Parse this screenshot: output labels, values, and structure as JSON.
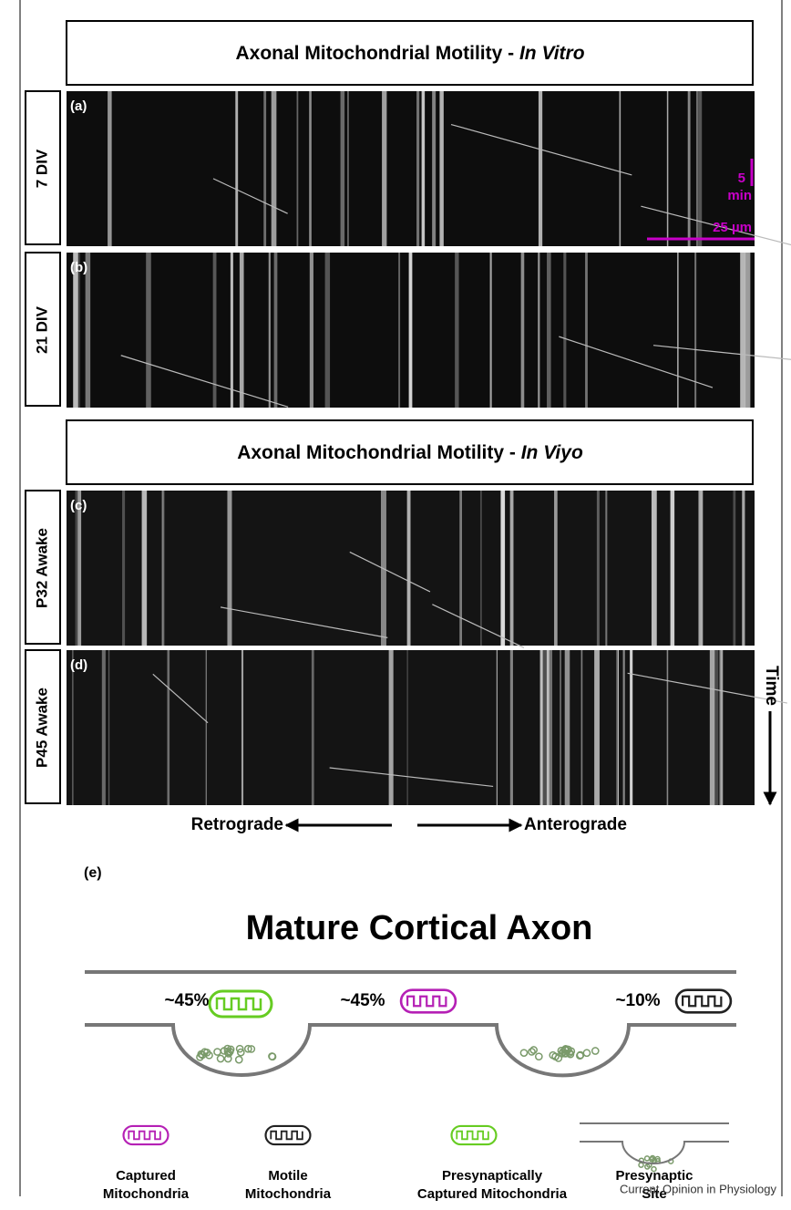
{
  "figure": {
    "in_vitro_title": {
      "text": "Axonal Mitochondrial Motility - ",
      "italic": "In Vitro"
    },
    "in_vivo_title": {
      "text": "Axonal Mitochondrial Motility - ",
      "italic": "In Viyo"
    },
    "panels": [
      {
        "label": "(a)",
        "side_label": "7 DIV"
      },
      {
        "label": "(b)",
        "side_label": "21 DIV"
      },
      {
        "label": "(c)",
        "side_label": "P32 Awake"
      },
      {
        "label": "(d)",
        "side_label": "P45 Awake"
      }
    ],
    "scale_bar": {
      "time": "5",
      "time_unit": "min",
      "length": "25 µm"
    },
    "time_axis": "Time",
    "retrograde": "Retrograde",
    "anterograde": "Anterograde",
    "schematic": {
      "label": "(e)",
      "title": "Mature Cortical Axon",
      "percentages": [
        "~45%",
        "~45%",
        "~10%"
      ],
      "legend": [
        {
          "lines": [
            "Captured",
            "Mitochondria"
          ]
        },
        {
          "lines": [
            "Motile",
            "Mitochondria"
          ]
        },
        {
          "lines": [
            "Presynaptically",
            "Captured Mitochondria"
          ]
        },
        {
          "lines": [
            "Presynaptic",
            "Site"
          ]
        }
      ]
    },
    "footer": "Current Opinion in Physiology"
  }
}
